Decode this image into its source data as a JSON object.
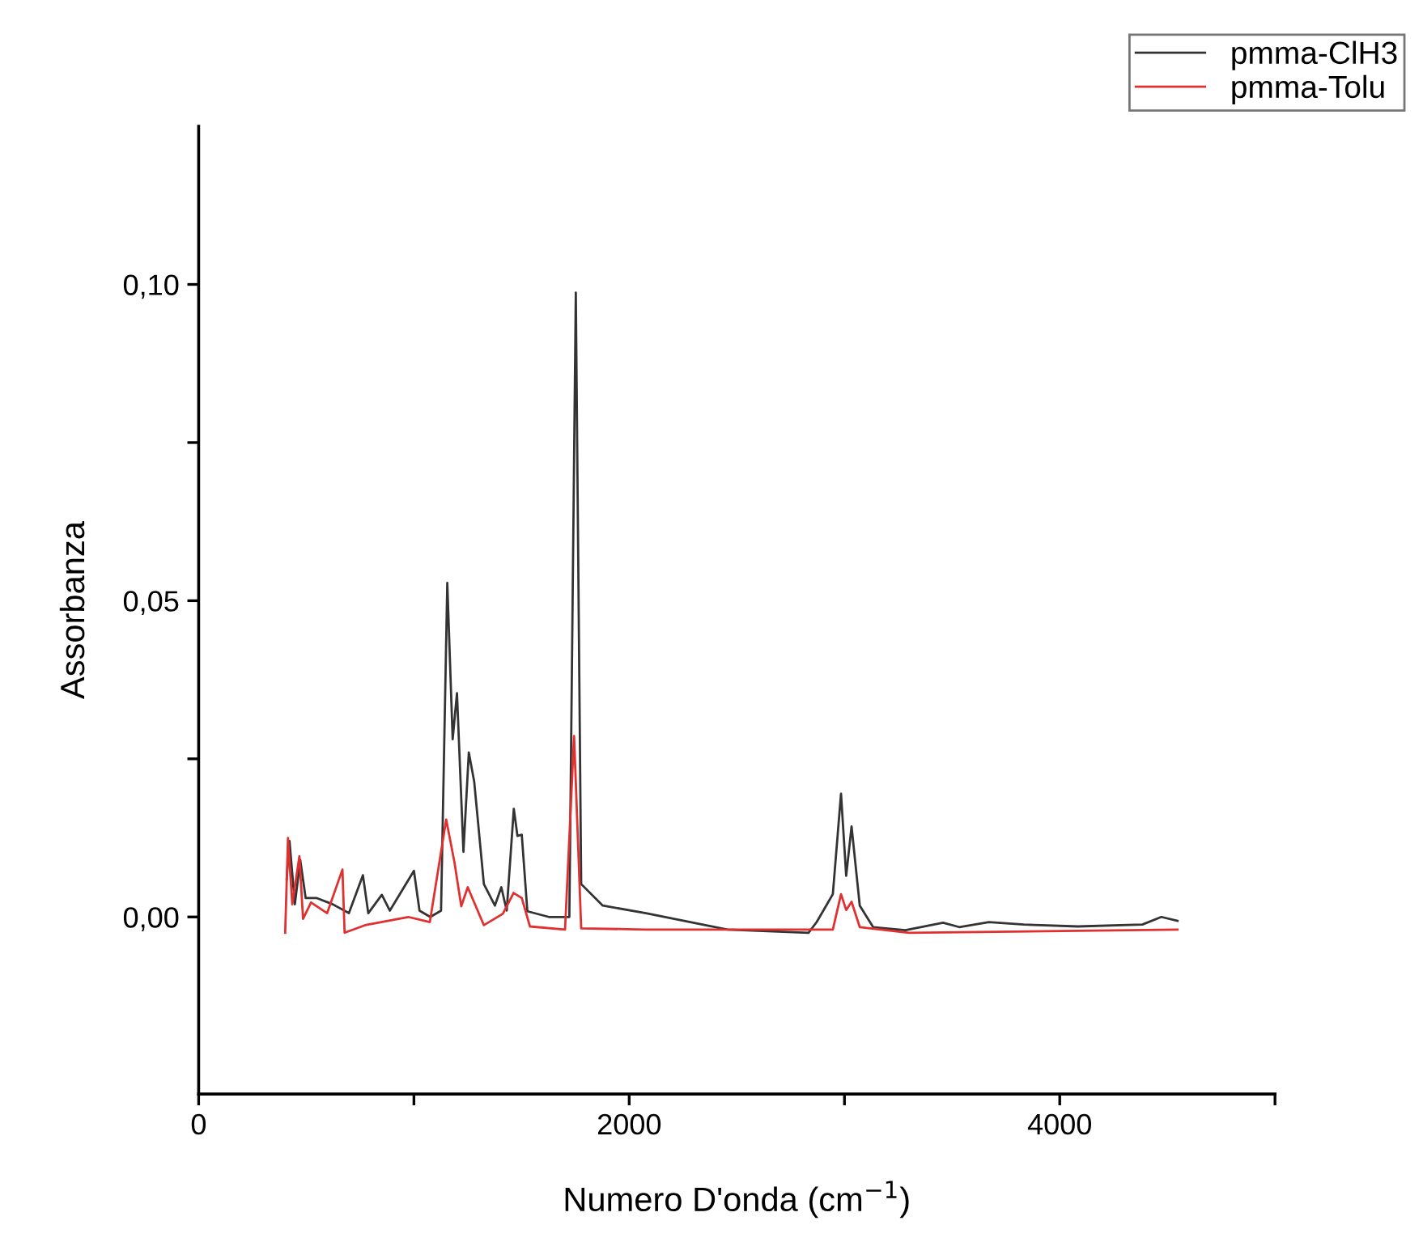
{
  "chart_data": {
    "type": "line",
    "xlabel": "Numero D'onda (cm$^{−1}$)",
    "ylabel": "Assorbanza",
    "xlim": [
      0,
      5000
    ],
    "ylim": [
      -0.028,
      0.125
    ],
    "xticks": [
      0,
      {
        "value": 1000,
        "label": null
      },
      2000,
      {
        "value": 3000,
        "label": null
      },
      4000,
      {
        "value": 5000,
        "label": null
      }
    ],
    "yticks": [
      {
        "value": 0,
        "label": "0,00"
      },
      {
        "value": 0.025,
        "label": null
      },
      {
        "value": 0.05,
        "label": "0,05"
      },
      {
        "value": 0.075,
        "label": null
      },
      {
        "value": 0.1,
        "label": "0,10"
      }
    ],
    "grid": false,
    "legend": "top right",
    "line_style": "solid",
    "marker": "none",
    "series": [
      {
        "name": "pmma-ClH3",
        "color": "#333333",
        "x": [
          409,
          422,
          447,
          472,
          497,
          547,
          623,
          698,
          763,
          788,
          851,
          888,
          1000,
          1026,
          1076,
          1126,
          1155,
          1180,
          1200,
          1230,
          1255,
          1280,
          1325,
          1376,
          1406,
          1431,
          1464,
          1481,
          1501,
          1527,
          1627,
          1722,
          1752,
          1777,
          1877,
          2078,
          2457,
          2833,
          2871,
          2946,
          2984,
          3008,
          3033,
          3071,
          3133,
          3283,
          3458,
          3533,
          3671,
          3833,
          4084,
          4384,
          4472,
          4547
        ],
        "values": [
          0.006,
          0.012,
          0.002,
          0.009,
          0.003,
          0.003,
          0.002,
          0.0006,
          0.0066,
          0.0006,
          0.0035,
          0.001,
          0.0073,
          0.001,
          0.0,
          0.001,
          0.0528,
          0.0281,
          0.0354,
          0.0103,
          0.026,
          0.0214,
          0.0052,
          0.0018,
          0.0047,
          0.001,
          0.0171,
          0.0128,
          0.013,
          0.0009,
          0.0,
          0.0,
          0.0987,
          0.0052,
          0.0018,
          0.0006,
          -0.002,
          -0.0025,
          -0.0008,
          0.0036,
          0.0195,
          0.0065,
          0.0143,
          0.0018,
          -0.0016,
          -0.0021,
          -0.0009,
          -0.0016,
          -0.0008,
          -0.0012,
          -0.0015,
          -0.0012,
          0.0,
          -0.0006
        ]
      },
      {
        "name": "pmma-Tolu",
        "color": "#e03030",
        "x": [
          402,
          415,
          435,
          468,
          485,
          522,
          597,
          668,
          678,
          773,
          974,
          1074,
          1150,
          1188,
          1220,
          1250,
          1325,
          1413,
          1463,
          1501,
          1539,
          1702,
          1744,
          1777,
          2078,
          2946,
          2984,
          3008,
          3033,
          3071,
          3300,
          4547
        ],
        "values": [
          -0.0025,
          0.0125,
          0.002,
          0.0096,
          -0.0003,
          0.0023,
          0.0006,
          0.0075,
          -0.0025,
          -0.0013,
          0.0,
          -0.0008,
          0.0154,
          0.0087,
          0.0017,
          0.0047,
          -0.0013,
          0.0005,
          0.0038,
          0.003,
          -0.0015,
          -0.002,
          0.0286,
          -0.0018,
          -0.002,
          -0.002,
          0.0036,
          0.0011,
          0.0024,
          -0.0016,
          -0.0025,
          -0.002
        ]
      }
    ]
  }
}
